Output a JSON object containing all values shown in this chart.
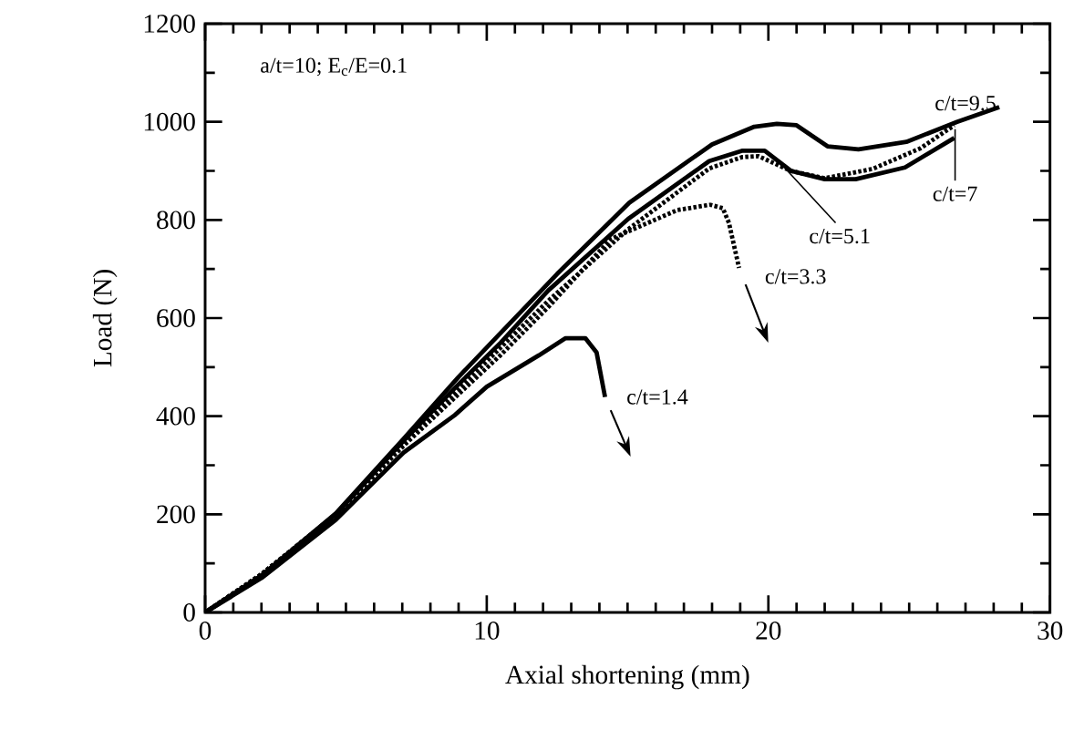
{
  "chart_data": {
    "type": "line",
    "xlabel": "Axial shortening (mm)",
    "ylabel": "Load (N)",
    "xlim": [
      0,
      30
    ],
    "ylim": [
      0,
      1200
    ],
    "xticks": [
      0,
      10,
      20,
      30
    ],
    "yticks": [
      0,
      200,
      400,
      600,
      800,
      1000,
      1200
    ],
    "grid": false,
    "marker": "none",
    "series": [
      {
        "color": "#000000",
        "line_style": "solid",
        "x": [
          0,
          2,
          4.64,
          7.05,
          9,
          10.5,
          12.5,
          15.06,
          18,
          19.5,
          20.3,
          21,
          22.1,
          23.2,
          24.9,
          26.7,
          28.2
        ],
        "values": [
          0,
          75,
          202,
          354,
          480,
          570,
          690,
          835,
          954,
          990,
          996,
          993,
          950,
          944,
          959,
          1000,
          1030
        ]
      },
      {
        "color": "#000000",
        "line_style": "dotted",
        "x": [
          0,
          2,
          4.64,
          7.05,
          9,
          10.5,
          12.18,
          15.02,
          17.9,
          19.06,
          19.65,
          20.8,
          22,
          23.7,
          25.4,
          26.6
        ],
        "values": [
          0,
          78,
          200,
          345,
          455,
          540,
          635,
          781,
          905,
          928,
          930,
          900,
          885,
          904,
          946,
          993
        ]
      },
      {
        "color": "#000000",
        "line_style": "solid",
        "x": [
          0,
          2,
          4.64,
          7.05,
          9,
          10.5,
          12.18,
          15.02,
          17.9,
          19.06,
          19.87,
          20.8,
          22,
          23.1,
          24.85,
          26.6
        ],
        "values": [
          0,
          75,
          200,
          350,
          465,
          550,
          656,
          802,
          920,
          941,
          941,
          900,
          883,
          883,
          907,
          967
        ]
      },
      {
        "color": "#000000",
        "line_style": "dotted",
        "x": [
          0,
          2,
          4.64,
          7.05,
          9,
          10.5,
          12.18,
          14.4,
          16.76,
          17.93,
          18.38,
          18.6,
          18.96
        ],
        "values": [
          0,
          78,
          198,
          340,
          445,
          525,
          622,
          761,
          820,
          831,
          824,
          794,
          702
        ]
      },
      {
        "color": "#000000",
        "line_style": "solid",
        "x": [
          0,
          2,
          4.64,
          7.05,
          8.86,
          10,
          11.85,
          12.8,
          13.5,
          13.9,
          14.2
        ],
        "values": [
          0,
          70,
          189,
          326,
          402,
          460,
          524,
          559,
          559,
          530,
          439
        ]
      }
    ],
    "annotations": [
      "a/t=10; E$_{c}$/E=0.1",
      {
        "text": "c/t=9.5",
        "x": 27,
        "y": 1005
      },
      {
        "text": "c/t=7",
        "x": 26.63,
        "y": 985
      },
      {
        "text": "c/t=5.1",
        "x": 20.68,
        "y": 900
      },
      {
        "text": "c/t=3.3",
        "x": 18.96,
        "y": 702
      },
      {
        "text": "c/t=1.4",
        "x": 14.2,
        "y": 439
      }
    ]
  }
}
